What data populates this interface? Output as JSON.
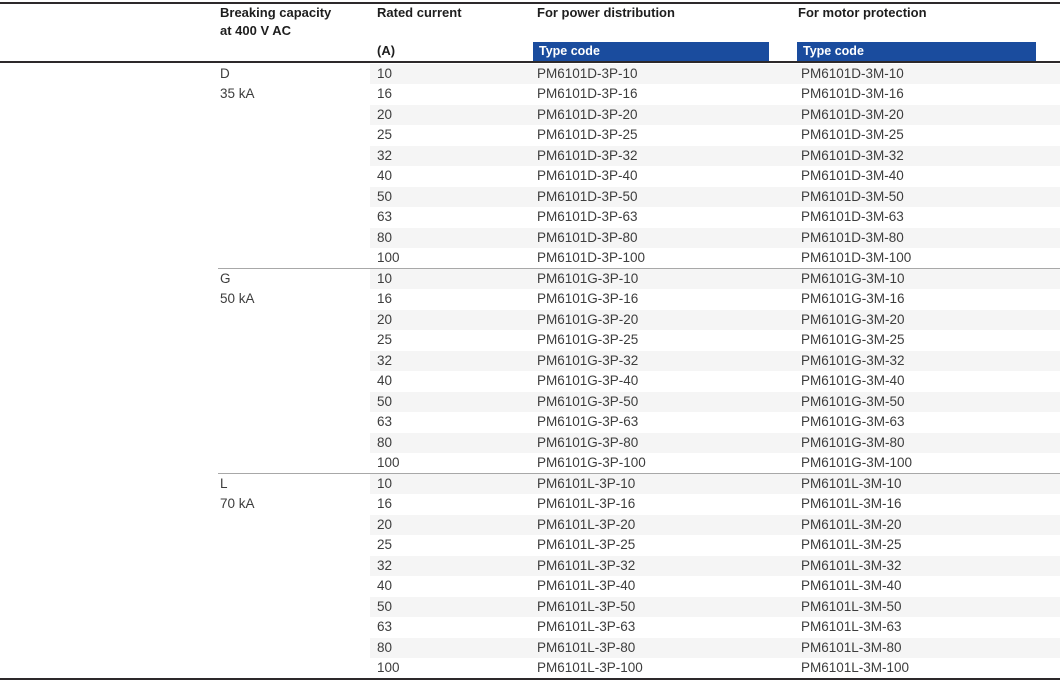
{
  "colors": {
    "accent_blue": "#1a4c9e",
    "type_code_text": "#ffffff",
    "row_stripe": "#f5f5f5",
    "heavy_rule": "#2d292b",
    "group_rule": "#a8a8a8",
    "header_text": "#1e1e1e",
    "body_text": "#3d3d3d"
  },
  "table": {
    "header": {
      "breaking_capacity_line1": "Breaking capacity",
      "breaking_capacity_line2": "at 400 V AC",
      "rated_current": "Rated current",
      "rated_current_unit": "(A)",
      "power_distribution": "For power distribution",
      "motor_protection": "For motor protection",
      "type_code_label": "Type code"
    },
    "groups": [
      {
        "code": "D",
        "breaking_capacity": "35 kA",
        "rows": [
          {
            "current": "10",
            "power_code": "PM6101D-3P-10",
            "motor_code": "PM6101D-3M-10"
          },
          {
            "current": "16",
            "power_code": "PM6101D-3P-16",
            "motor_code": "PM6101D-3M-16"
          },
          {
            "current": "20",
            "power_code": "PM6101D-3P-20",
            "motor_code": "PM6101D-3M-20"
          },
          {
            "current": "25",
            "power_code": "PM6101D-3P-25",
            "motor_code": "PM6101D-3M-25"
          },
          {
            "current": "32",
            "power_code": "PM6101D-3P-32",
            "motor_code": "PM6101D-3M-32"
          },
          {
            "current": "40",
            "power_code": "PM6101D-3P-40",
            "motor_code": "PM6101D-3M-40"
          },
          {
            "current": "50",
            "power_code": "PM6101D-3P-50",
            "motor_code": "PM6101D-3M-50"
          },
          {
            "current": "63",
            "power_code": "PM6101D-3P-63",
            "motor_code": "PM6101D-3M-63"
          },
          {
            "current": "80",
            "power_code": "PM6101D-3P-80",
            "motor_code": "PM6101D-3M-80"
          },
          {
            "current": "100",
            "power_code": "PM6101D-3P-100",
            "motor_code": "PM6101D-3M-100"
          }
        ]
      },
      {
        "code": "G",
        "breaking_capacity": "50 kA",
        "rows": [
          {
            "current": "10",
            "power_code": "PM6101G-3P-10",
            "motor_code": "PM6101G-3M-10"
          },
          {
            "current": "16",
            "power_code": "PM6101G-3P-16",
            "motor_code": "PM6101G-3M-16"
          },
          {
            "current": "20",
            "power_code": "PM6101G-3P-20",
            "motor_code": "PM6101G-3M-20"
          },
          {
            "current": "25",
            "power_code": "PM6101G-3P-25",
            "motor_code": "PM6101G-3M-25"
          },
          {
            "current": "32",
            "power_code": "PM6101G-3P-32",
            "motor_code": "PM6101G-3M-32"
          },
          {
            "current": "40",
            "power_code": "PM6101G-3P-40",
            "motor_code": "PM6101G-3M-40"
          },
          {
            "current": "50",
            "power_code": "PM6101G-3P-50",
            "motor_code": "PM6101G-3M-50"
          },
          {
            "current": "63",
            "power_code": "PM6101G-3P-63",
            "motor_code": "PM6101G-3M-63"
          },
          {
            "current": "80",
            "power_code": "PM6101G-3P-80",
            "motor_code": "PM6101G-3M-80"
          },
          {
            "current": "100",
            "power_code": "PM6101G-3P-100",
            "motor_code": "PM6101G-3M-100"
          }
        ]
      },
      {
        "code": "L",
        "breaking_capacity": "70 kA",
        "rows": [
          {
            "current": "10",
            "power_code": "PM6101L-3P-10",
            "motor_code": "PM6101L-3M-10"
          },
          {
            "current": "16",
            "power_code": "PM6101L-3P-16",
            "motor_code": "PM6101L-3M-16"
          },
          {
            "current": "20",
            "power_code": "PM6101L-3P-20",
            "motor_code": "PM6101L-3M-20"
          },
          {
            "current": "25",
            "power_code": "PM6101L-3P-25",
            "motor_code": "PM6101L-3M-25"
          },
          {
            "current": "32",
            "power_code": "PM6101L-3P-32",
            "motor_code": "PM6101L-3M-32"
          },
          {
            "current": "40",
            "power_code": "PM6101L-3P-40",
            "motor_code": "PM6101L-3M-40"
          },
          {
            "current": "50",
            "power_code": "PM6101L-3P-50",
            "motor_code": "PM6101L-3M-50"
          },
          {
            "current": "63",
            "power_code": "PM6101L-3P-63",
            "motor_code": "PM6101L-3M-63"
          },
          {
            "current": "80",
            "power_code": "PM6101L-3P-80",
            "motor_code": "PM6101L-3M-80"
          },
          {
            "current": "100",
            "power_code": "PM6101L-3P-100",
            "motor_code": "PM6101L-3M-100"
          }
        ]
      }
    ]
  }
}
